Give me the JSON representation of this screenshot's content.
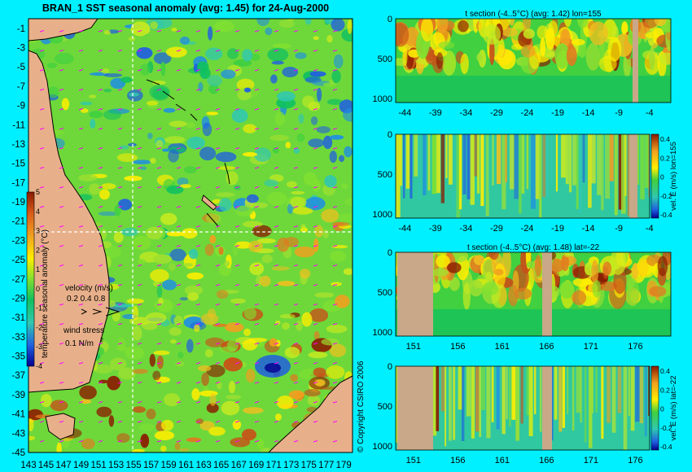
{
  "title": "BRAN_1  SST seasonal anomaly  (avg: 1.45)  for 24-Aug-2000",
  "copyright": "© Copyright CSIRO 2006",
  "colors": {
    "background": "#00f0ff",
    "land": "#e8b08a",
    "section_land": "#c8a888",
    "gridline": "#ffffff",
    "wind_arrow": "#ff00ff",
    "coast": "#000000"
  },
  "chart_data": [
    {
      "type": "heatmap",
      "name": "map",
      "title": "BRAN_1  SST seasonal anomaly  (avg: 1.45)  for 24-Aug-2000",
      "x_ticks": [
        "143",
        "145",
        "147",
        "149",
        "151",
        "153",
        "155",
        "157",
        "159",
        "161",
        "163",
        "165",
        "167",
        "169",
        "171",
        "173",
        "175",
        "177",
        "179"
      ],
      "y_ticks": [
        "-1",
        "-3",
        "-5",
        "-7",
        "-9",
        "-11",
        "-13",
        "-15",
        "-17",
        "-19",
        "-21",
        "-23",
        "-25",
        "-27",
        "-29",
        "-31",
        "-33",
        "-35",
        "-37",
        "-39",
        "-41",
        "-43",
        "-45"
      ],
      "xlim": [
        143,
        180
      ],
      "ylim": [
        -45,
        0
      ],
      "crosshair": {
        "lon": 155,
        "lat": -22
      },
      "colorbar": {
        "label": "temperature seasonal anomaly (°C)",
        "ticks": [
          "5",
          "4",
          "3",
          "2",
          "1",
          "0",
          "-1",
          "-2",
          "-3",
          "-4"
        ],
        "range": [
          -4,
          5
        ]
      },
      "legend": {
        "velocity_label": "velocity (m/s)",
        "velocity_scale": "0.2 0.4 0.8",
        "wind_label": "wind stress",
        "wind_scale": "0.1 N/m"
      }
    },
    {
      "type": "heatmap",
      "name": "t_section_lon155",
      "title": "t section (-4..5°C) (avg: 1.42) lon=155",
      "x_ticks": [
        "-44",
        "-39",
        "-34",
        "-29",
        "-24",
        "-19",
        "-14",
        "-9",
        "-4"
      ],
      "y_ticks": [
        "0",
        "500",
        "1000"
      ],
      "xlim": [
        -45.5,
        -0.5
      ],
      "ylim": [
        1050,
        0
      ]
    },
    {
      "type": "heatmap",
      "name": "vel_e_lon155",
      "x_ticks": [
        "-44",
        "-39",
        "-34",
        "-29",
        "-24",
        "-19",
        "-14",
        "-9",
        "-4"
      ],
      "y_ticks": [
        "0",
        "500",
        "1000"
      ],
      "colorbar": {
        "label": "vel. E (m/s) lon=155",
        "ticks": [
          "0.4",
          "0.2",
          "0",
          "-0.2",
          "-0.4"
        ]
      }
    },
    {
      "type": "heatmap",
      "name": "t_section_lat-22",
      "title": "t section (-4..5°C) (avg: 1.48) lat=-22",
      "x_ticks": [
        "151",
        "156",
        "161",
        "166",
        "171",
        "176"
      ],
      "y_ticks": [
        "0",
        "500",
        "1000"
      ],
      "xlim": [
        149,
        180
      ],
      "ylim": [
        1050,
        0
      ]
    },
    {
      "type": "heatmap",
      "name": "vel_e_lat-22",
      "x_ticks": [
        "151",
        "156",
        "161",
        "166",
        "171",
        "176"
      ],
      "y_ticks": [
        "0",
        "500",
        "1000"
      ],
      "colorbar": {
        "label": "vel. E (m/s) lat=-22",
        "ticks": [
          "0.4",
          "0.2",
          "0",
          "-0.2",
          "-0.4"
        ]
      }
    }
  ]
}
